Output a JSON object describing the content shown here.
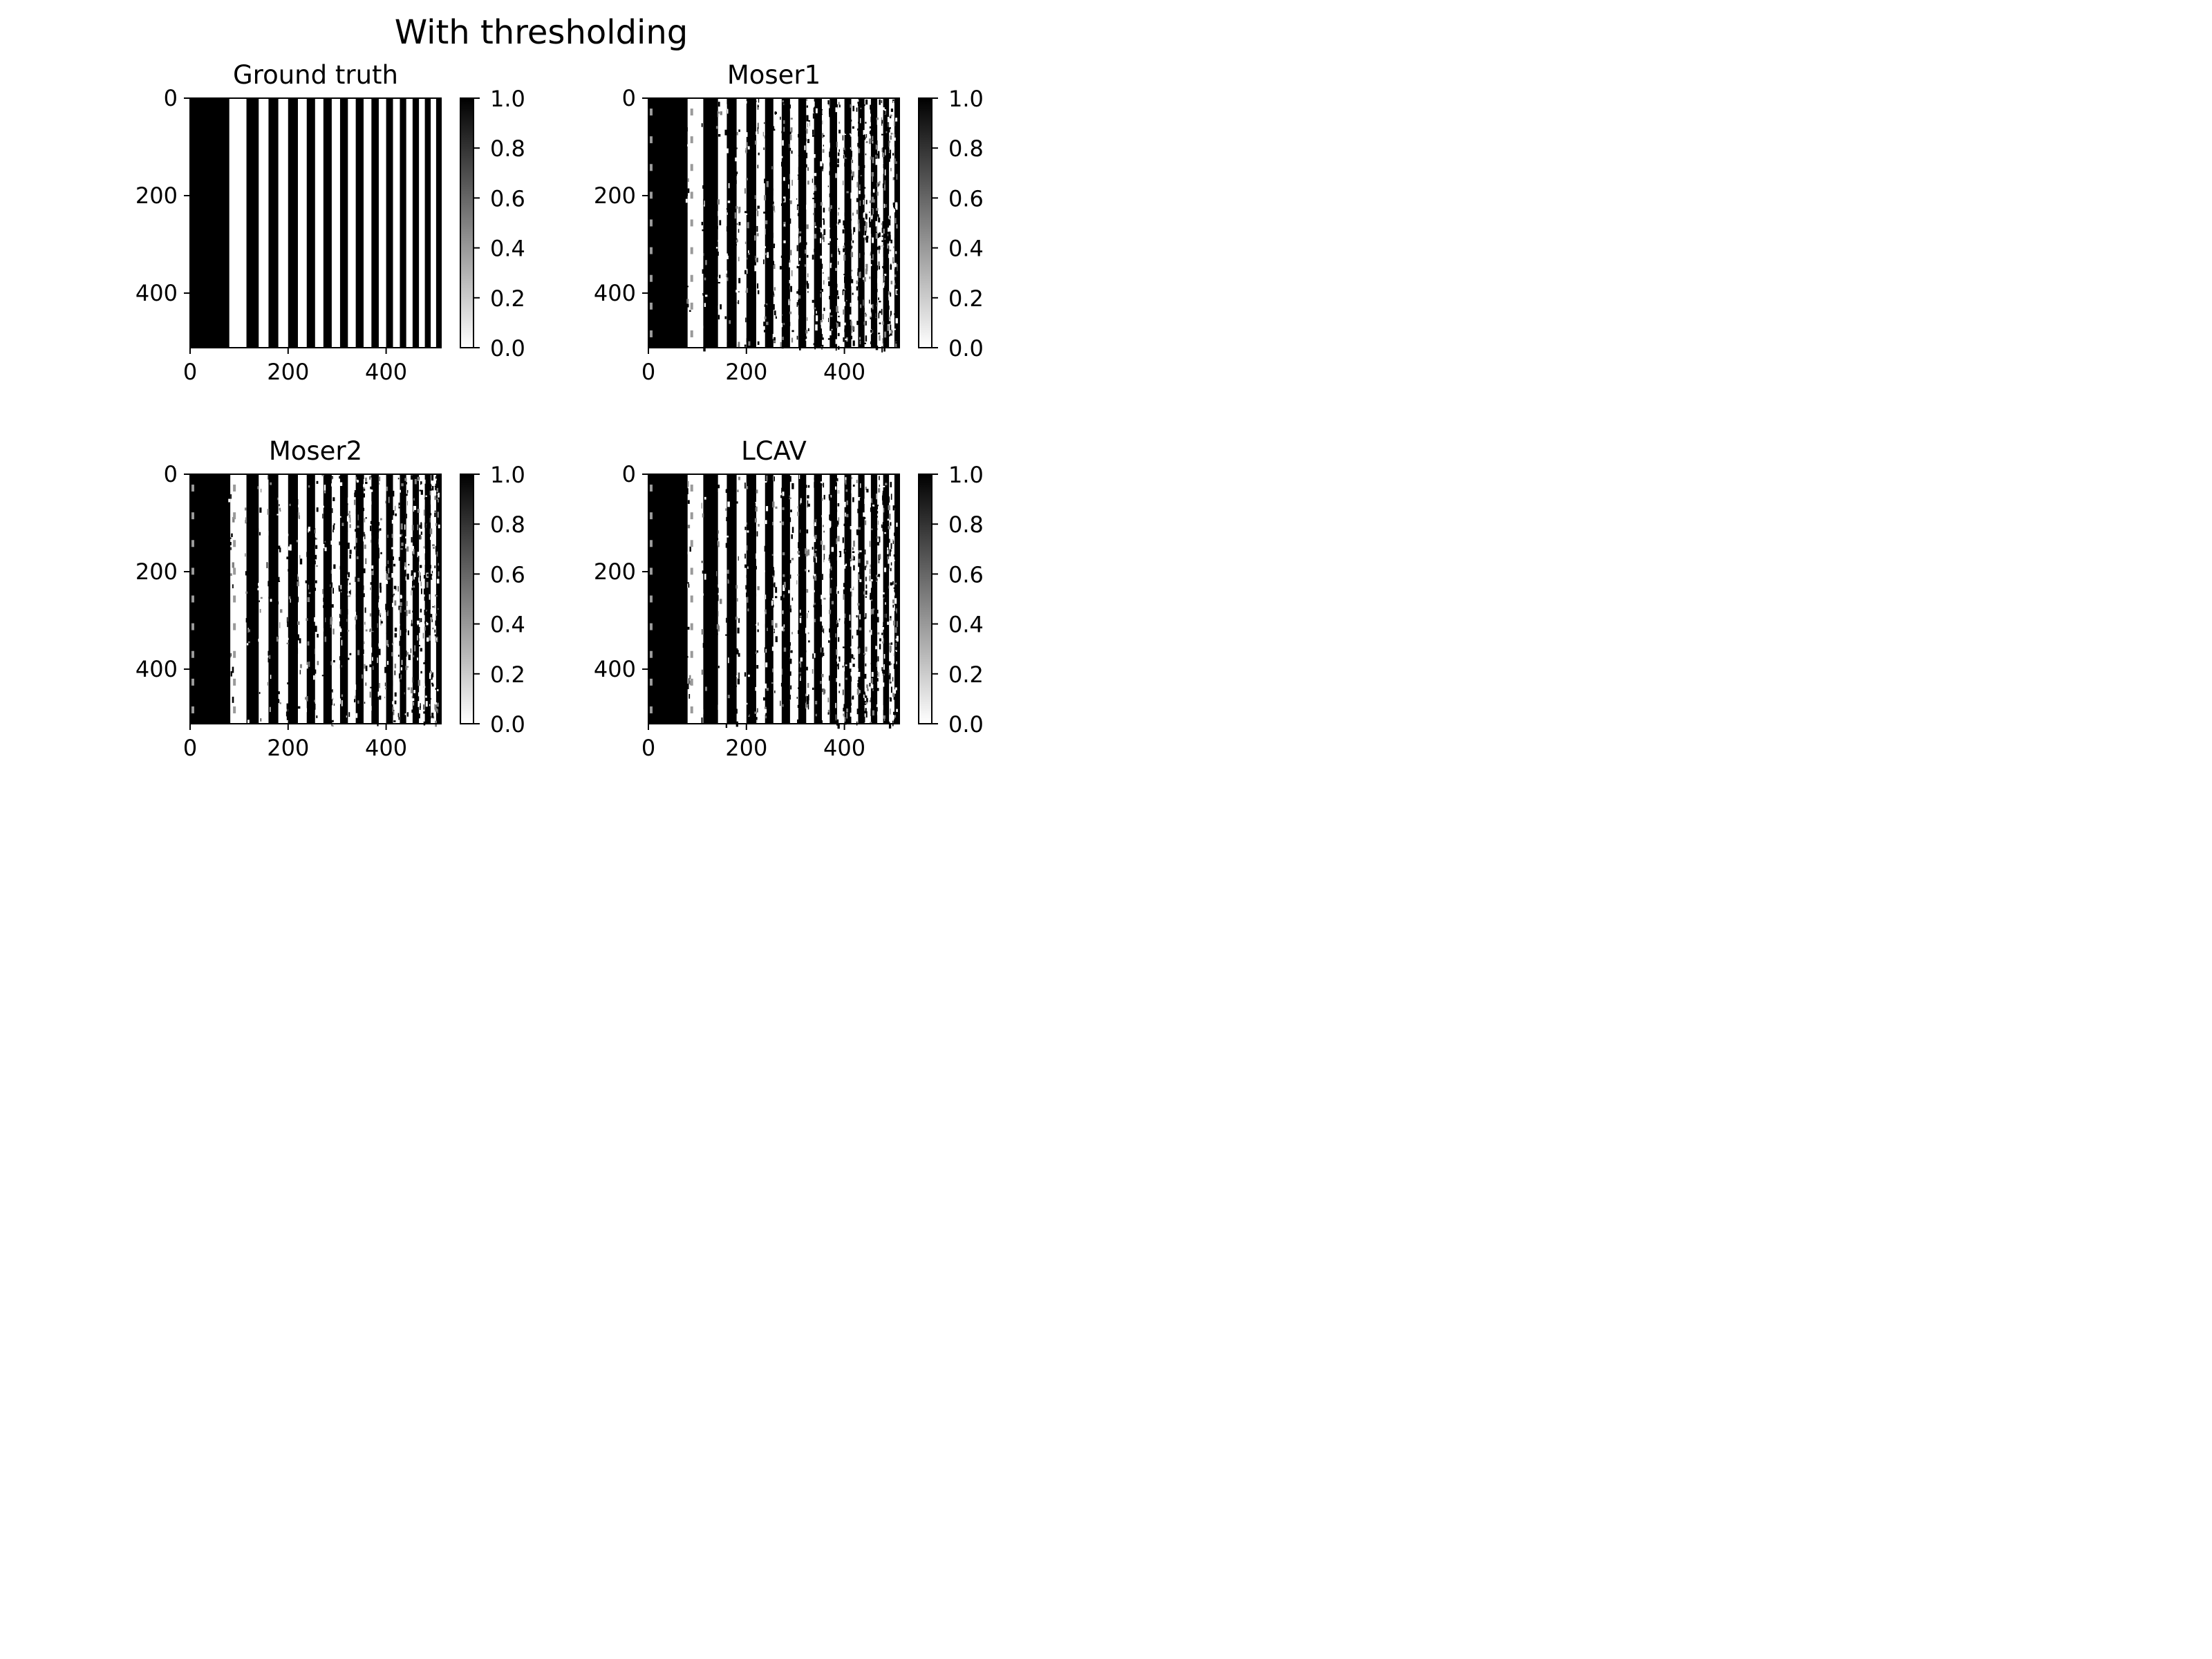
{
  "figure": {
    "title": "With thresholding"
  },
  "chart_data": [
    {
      "type": "heatmap",
      "title": "Ground truth",
      "description_kind": "thresholded binary stripe pattern, sharp edges",
      "xlim": [
        0,
        512
      ],
      "ylim": [
        512,
        0
      ],
      "x_ticks": [
        0,
        200,
        400
      ],
      "y_ticks": [
        0,
        200,
        400
      ],
      "colorbar": {
        "cmap": "gray_r",
        "range": [
          0.0,
          1.0
        ],
        "ticks": [
          "0.0",
          "0.2",
          "0.4",
          "0.6",
          "0.8",
          "1.0"
        ]
      },
      "stripe_edges": [
        0,
        80,
        115,
        140,
        160,
        180,
        200,
        220,
        238,
        255,
        272,
        289,
        306,
        322,
        338,
        354,
        370,
        385,
        400,
        414,
        428,
        441,
        454,
        467,
        479,
        491,
        502,
        512
      ],
      "noise": 0
    },
    {
      "type": "heatmap",
      "title": "Moser1",
      "xlim": [
        0,
        512
      ],
      "ylim": [
        512,
        0
      ],
      "x_ticks": [
        0,
        200,
        400
      ],
      "y_ticks": [
        0,
        200,
        400
      ],
      "colorbar": {
        "cmap": "gray_r",
        "range": [
          0.0,
          1.0
        ],
        "ticks": [
          "0.0",
          "0.2",
          "0.4",
          "0.6",
          "0.8",
          "1.0"
        ]
      },
      "stripe_edges": [
        0,
        80,
        112,
        142,
        160,
        180,
        200,
        220,
        238,
        255,
        272,
        289,
        306,
        322,
        338,
        354,
        370,
        385,
        400,
        414,
        428,
        441,
        454,
        467,
        479,
        491,
        502,
        512
      ],
      "noise": 0.28
    },
    {
      "type": "heatmap",
      "title": "Moser2",
      "xlim": [
        0,
        512
      ],
      "ylim": [
        512,
        0
      ],
      "x_ticks": [
        0,
        200,
        400
      ],
      "y_ticks": [
        0,
        200,
        400
      ],
      "colorbar": {
        "cmap": "gray_r",
        "range": [
          0.0,
          1.0
        ],
        "ticks": [
          "0.0",
          "0.2",
          "0.4",
          "0.6",
          "0.8",
          "1.0"
        ]
      },
      "stripe_edges": [
        0,
        82,
        115,
        140,
        160,
        180,
        200,
        220,
        238,
        255,
        272,
        289,
        306,
        322,
        338,
        354,
        370,
        385,
        400,
        414,
        428,
        441,
        454,
        467,
        479,
        491,
        502,
        512
      ],
      "noise": 0.24
    },
    {
      "type": "heatmap",
      "title": "LCAV",
      "xlim": [
        0,
        512
      ],
      "ylim": [
        512,
        0
      ],
      "x_ticks": [
        0,
        200,
        400
      ],
      "y_ticks": [
        0,
        200,
        400
      ],
      "colorbar": {
        "cmap": "gray_r",
        "range": [
          0.0,
          1.0
        ],
        "ticks": [
          "0.0",
          "0.2",
          "0.4",
          "0.6",
          "0.8",
          "1.0"
        ]
      },
      "stripe_edges": [
        0,
        80,
        112,
        142,
        160,
        180,
        200,
        220,
        238,
        255,
        272,
        289,
        306,
        322,
        338,
        354,
        370,
        385,
        400,
        414,
        428,
        441,
        454,
        467,
        479,
        491,
        502,
        512
      ],
      "noise": 0.26
    }
  ]
}
